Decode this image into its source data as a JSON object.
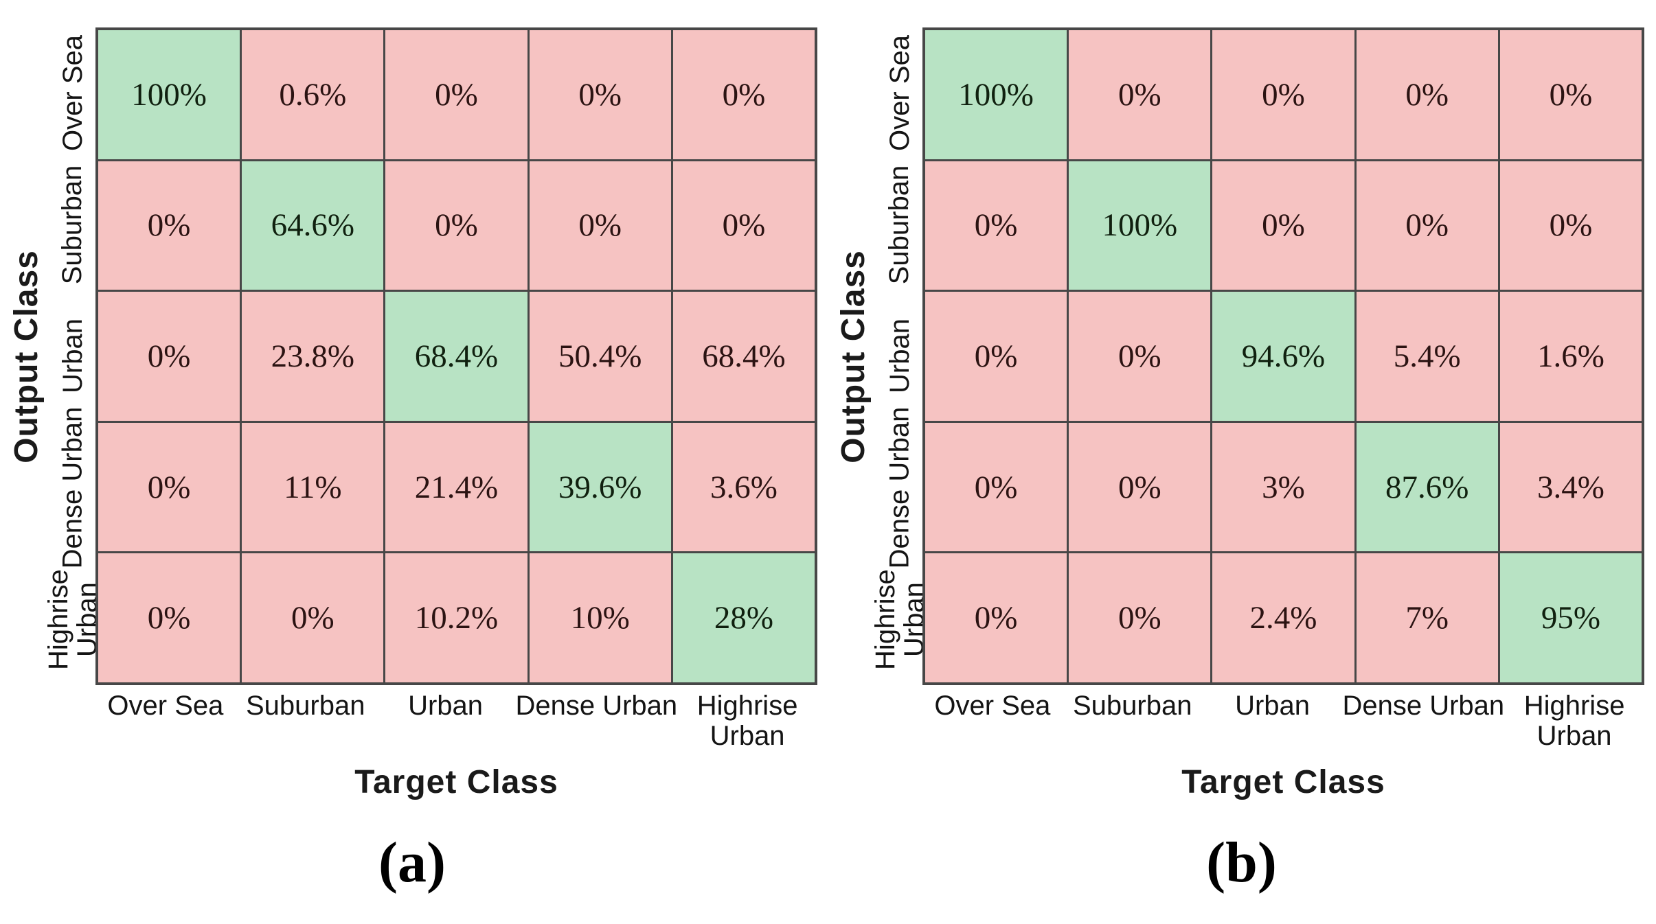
{
  "figure": {
    "colors": {
      "diagonal_cell": "#b8e3c4",
      "off_diagonal_cell": "#f6c3c2",
      "grid_line": "#474747",
      "background": "#ffffff"
    },
    "panels": [
      {
        "caption": "(a)",
        "y_axis_title": "Output Class",
        "x_axis_title": "Target Class",
        "row_labels": [
          "Over Sea",
          "Suburban",
          "Urban",
          "Dense Urban",
          "Highrise Urban"
        ],
        "col_labels": [
          "Over Sea",
          "Suburban",
          "Urban",
          "Dense Urban",
          "Highrise Urban"
        ],
        "rows": [
          [
            "100%",
            "0.6%",
            "0%",
            "0%",
            "0%"
          ],
          [
            "0%",
            "64.6%",
            "0%",
            "0%",
            "0%"
          ],
          [
            "0%",
            "23.8%",
            "68.4%",
            "50.4%",
            "68.4%"
          ],
          [
            "0%",
            "11%",
            "21.4%",
            "39.6%",
            "3.6%"
          ],
          [
            "0%",
            "0%",
            "10.2%",
            "10%",
            "28%"
          ]
        ]
      },
      {
        "caption": "(b)",
        "y_axis_title": "Output Class",
        "x_axis_title": "Target Class",
        "row_labels": [
          "Over Sea",
          "Suburban",
          "Urban",
          "Dense Urban",
          "Highrise Urban"
        ],
        "col_labels": [
          "Over Sea",
          "Suburban",
          "Urban",
          "Dense Urban",
          "Highrise Urban"
        ],
        "rows": [
          [
            "100%",
            "0%",
            "0%",
            "0%",
            "0%"
          ],
          [
            "0%",
            "100%",
            "0%",
            "0%",
            "0%"
          ],
          [
            "0%",
            "0%",
            "94.6%",
            "5.4%",
            "1.6%"
          ],
          [
            "0%",
            "0%",
            "3%",
            "87.6%",
            "3.4%"
          ],
          [
            "0%",
            "0%",
            "2.4%",
            "7%",
            "95%"
          ]
        ]
      }
    ]
  },
  "chart_data": [
    {
      "type": "heatmap",
      "title": "(a)",
      "xlabel": "Target Class",
      "ylabel": "Output Class",
      "x_categories": [
        "Over Sea",
        "Suburban",
        "Urban",
        "Dense Urban",
        "Highrise Urban"
      ],
      "y_categories": [
        "Over Sea",
        "Suburban",
        "Urban",
        "Dense Urban",
        "Highrise Urban"
      ],
      "values_percent": [
        [
          100,
          0.6,
          0,
          0,
          0
        ],
        [
          0,
          64.6,
          0,
          0,
          0
        ],
        [
          0,
          23.8,
          68.4,
          50.4,
          68.4
        ],
        [
          0,
          11,
          21.4,
          39.6,
          3.6
        ],
        [
          0,
          0,
          10.2,
          10,
          28
        ]
      ],
      "color_rule": "diagonal cells green (#b8e3c4), off-diagonal cells pink (#f6c3c2)",
      "legend": "none",
      "grid": true
    },
    {
      "type": "heatmap",
      "title": "(b)",
      "xlabel": "Target Class",
      "ylabel": "Output Class",
      "x_categories": [
        "Over Sea",
        "Suburban",
        "Urban",
        "Dense Urban",
        "Highrise Urban"
      ],
      "y_categories": [
        "Over Sea",
        "Suburban",
        "Urban",
        "Dense Urban",
        "Highrise Urban"
      ],
      "values_percent": [
        [
          100,
          0,
          0,
          0,
          0
        ],
        [
          0,
          100,
          0,
          0,
          0
        ],
        [
          0,
          0,
          94.6,
          5.4,
          1.6
        ],
        [
          0,
          0,
          3,
          87.6,
          3.4
        ],
        [
          0,
          0,
          2.4,
          7,
          95
        ]
      ],
      "color_rule": "diagonal cells green (#b8e3c4), off-diagonal cells pink (#f6c3c2)",
      "legend": "none",
      "grid": true
    }
  ]
}
